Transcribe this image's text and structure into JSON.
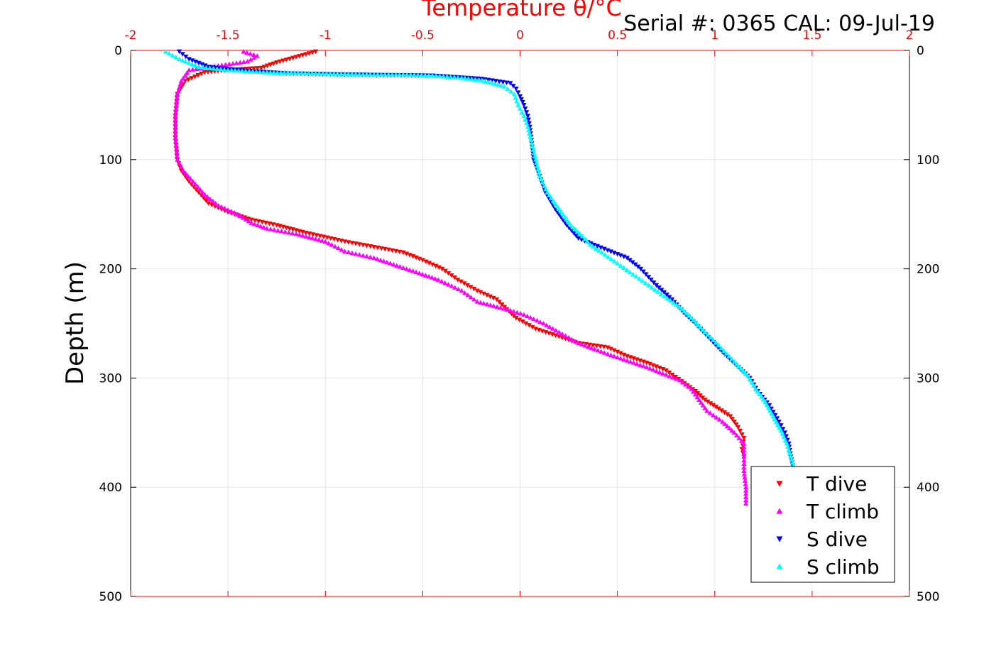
{
  "chart_data": {
    "type": "scatter",
    "xlabel": "Temperature θ/°C",
    "ylabel": "Depth (m)",
    "subtitle": "Serial #: 0365  CAL: 09-Jul-19",
    "xlim": [
      -2,
      2
    ],
    "ylim": [
      0,
      500
    ],
    "y_reversed": true,
    "x_ticks": [
      "-2",
      "-1.5",
      "-1",
      "-0.5",
      "0",
      "0.5",
      "1",
      "1.5",
      "2"
    ],
    "y_ticks": [
      "0",
      "100",
      "200",
      "300",
      "400",
      "500"
    ],
    "grid": true,
    "legend_position": "bottom-right",
    "series": [
      {
        "name": "T dive",
        "marker": "triangle-down",
        "color": "#ff0000",
        "points": [
          [
            -1.05,
            1
          ],
          [
            -1.15,
            6
          ],
          [
            -1.25,
            11
          ],
          [
            -1.33,
            16
          ],
          [
            -1.5,
            18
          ],
          [
            -1.62,
            20
          ],
          [
            -1.72,
            28
          ],
          [
            -1.76,
            40
          ],
          [
            -1.77,
            60
          ],
          [
            -1.77,
            80
          ],
          [
            -1.76,
            100
          ],
          [
            -1.74,
            110
          ],
          [
            -1.7,
            120
          ],
          [
            -1.65,
            130
          ],
          [
            -1.6,
            140
          ],
          [
            -1.5,
            148
          ],
          [
            -1.38,
            155
          ],
          [
            -1.25,
            160
          ],
          [
            -1.1,
            167
          ],
          [
            -0.9,
            175
          ],
          [
            -0.75,
            180
          ],
          [
            -0.6,
            185
          ],
          [
            -0.5,
            192
          ],
          [
            -0.4,
            200
          ],
          [
            -0.32,
            210
          ],
          [
            -0.22,
            220
          ],
          [
            -0.12,
            228
          ],
          [
            -0.08,
            235
          ],
          [
            -0.02,
            245
          ],
          [
            0.08,
            255
          ],
          [
            0.2,
            262
          ],
          [
            0.3,
            268
          ],
          [
            0.45,
            272
          ],
          [
            0.55,
            280
          ],
          [
            0.65,
            286
          ],
          [
            0.75,
            293
          ],
          [
            0.83,
            303
          ],
          [
            0.9,
            312
          ],
          [
            0.95,
            320
          ],
          [
            1.02,
            328
          ],
          [
            1.08,
            335
          ],
          [
            1.12,
            345
          ],
          [
            1.15,
            355
          ],
          [
            1.14,
            365
          ],
          [
            1.15,
            372
          ]
        ]
      },
      {
        "name": "T climb",
        "marker": "triangle-up",
        "color": "#ff00ff",
        "points": [
          [
            -1.42,
            1
          ],
          [
            -1.35,
            5
          ],
          [
            -1.4,
            10
          ],
          [
            -1.55,
            14
          ],
          [
            -1.7,
            18
          ],
          [
            -1.74,
            28
          ],
          [
            -1.76,
            40
          ],
          [
            -1.77,
            60
          ],
          [
            -1.77,
            80
          ],
          [
            -1.76,
            100
          ],
          [
            -1.73,
            110
          ],
          [
            -1.68,
            120
          ],
          [
            -1.62,
            132
          ],
          [
            -1.55,
            142
          ],
          [
            -1.45,
            150
          ],
          [
            -1.38,
            158
          ],
          [
            -1.3,
            163
          ],
          [
            -1.15,
            168
          ],
          [
            -1.0,
            175
          ],
          [
            -0.9,
            184
          ],
          [
            -0.75,
            190
          ],
          [
            -0.65,
            196
          ],
          [
            -0.55,
            202
          ],
          [
            -0.42,
            210
          ],
          [
            -0.3,
            220
          ],
          [
            -0.22,
            230
          ],
          [
            -0.05,
            238
          ],
          [
            0.02,
            242
          ],
          [
            0.12,
            250
          ],
          [
            0.2,
            258
          ],
          [
            0.3,
            268
          ],
          [
            0.45,
            278
          ],
          [
            0.55,
            284
          ],
          [
            0.65,
            290
          ],
          [
            0.75,
            297
          ],
          [
            0.82,
            302
          ],
          [
            0.88,
            310
          ],
          [
            0.92,
            320
          ],
          [
            0.96,
            330
          ],
          [
            1.04,
            340
          ],
          [
            1.1,
            350
          ],
          [
            1.15,
            360
          ],
          [
            1.15,
            372
          ],
          [
            1.15,
            385
          ],
          [
            1.16,
            400
          ],
          [
            1.16,
            415
          ]
        ]
      },
      {
        "name": "S dive",
        "marker": "triangle-down",
        "color": "#0000ff",
        "points": [
          [
            -1.75,
            1
          ],
          [
            -1.7,
            8
          ],
          [
            -1.6,
            15
          ],
          [
            -1.45,
            18
          ],
          [
            -1.2,
            21
          ],
          [
            -0.9,
            22
          ],
          [
            -0.7,
            22.5
          ],
          [
            -0.45,
            23
          ],
          [
            -0.2,
            26
          ],
          [
            -0.05,
            30
          ],
          [
            -0.02,
            35
          ],
          [
            0.0,
            42
          ],
          [
            0.02,
            50
          ],
          [
            0.04,
            60
          ],
          [
            0.05,
            70
          ],
          [
            0.06,
            85
          ],
          [
            0.07,
            100
          ],
          [
            0.1,
            115
          ],
          [
            0.13,
            130
          ],
          [
            0.18,
            145
          ],
          [
            0.24,
            160
          ],
          [
            0.3,
            172
          ],
          [
            0.38,
            178
          ],
          [
            0.45,
            183
          ],
          [
            0.55,
            190
          ],
          [
            0.62,
            200
          ],
          [
            0.7,
            215
          ],
          [
            0.78,
            228
          ],
          [
            0.84,
            240
          ],
          [
            0.9,
            250
          ],
          [
            0.98,
            265
          ],
          [
            1.05,
            278
          ],
          [
            1.12,
            290
          ],
          [
            1.18,
            300
          ],
          [
            1.22,
            312
          ],
          [
            1.28,
            325
          ],
          [
            1.33,
            340
          ],
          [
            1.36,
            350
          ],
          [
            1.38,
            360
          ],
          [
            1.39,
            372
          ],
          [
            1.4,
            380
          ]
        ]
      },
      {
        "name": "S climb",
        "marker": "triangle-up",
        "color": "#00ffff",
        "points": [
          [
            -1.82,
            1
          ],
          [
            -1.75,
            8
          ],
          [
            -1.65,
            15
          ],
          [
            -1.5,
            18
          ],
          [
            -1.3,
            20
          ],
          [
            -1.05,
            21
          ],
          [
            -0.75,
            22
          ],
          [
            -0.6,
            22
          ],
          [
            -0.45,
            23
          ],
          [
            -0.3,
            25
          ],
          [
            -0.18,
            28
          ],
          [
            -0.08,
            33
          ],
          [
            -0.03,
            40
          ],
          [
            -0.01,
            50
          ],
          [
            0.02,
            60
          ],
          [
            0.04,
            70
          ],
          [
            0.06,
            85
          ],
          [
            0.08,
            100
          ],
          [
            0.1,
            115
          ],
          [
            0.14,
            130
          ],
          [
            0.2,
            145
          ],
          [
            0.26,
            160
          ],
          [
            0.32,
            170
          ],
          [
            0.36,
            178
          ],
          [
            0.42,
            185
          ],
          [
            0.5,
            195
          ],
          [
            0.58,
            205
          ],
          [
            0.66,
            215
          ],
          [
            0.74,
            225
          ],
          [
            0.82,
            235
          ],
          [
            0.88,
            245
          ],
          [
            0.95,
            258
          ],
          [
            1.02,
            270
          ],
          [
            1.1,
            285
          ],
          [
            1.17,
            298
          ],
          [
            1.21,
            310
          ],
          [
            1.26,
            322
          ],
          [
            1.3,
            335
          ],
          [
            1.34,
            348
          ],
          [
            1.37,
            360
          ],
          [
            1.39,
            372
          ],
          [
            1.41,
            383
          ]
        ]
      }
    ]
  }
}
